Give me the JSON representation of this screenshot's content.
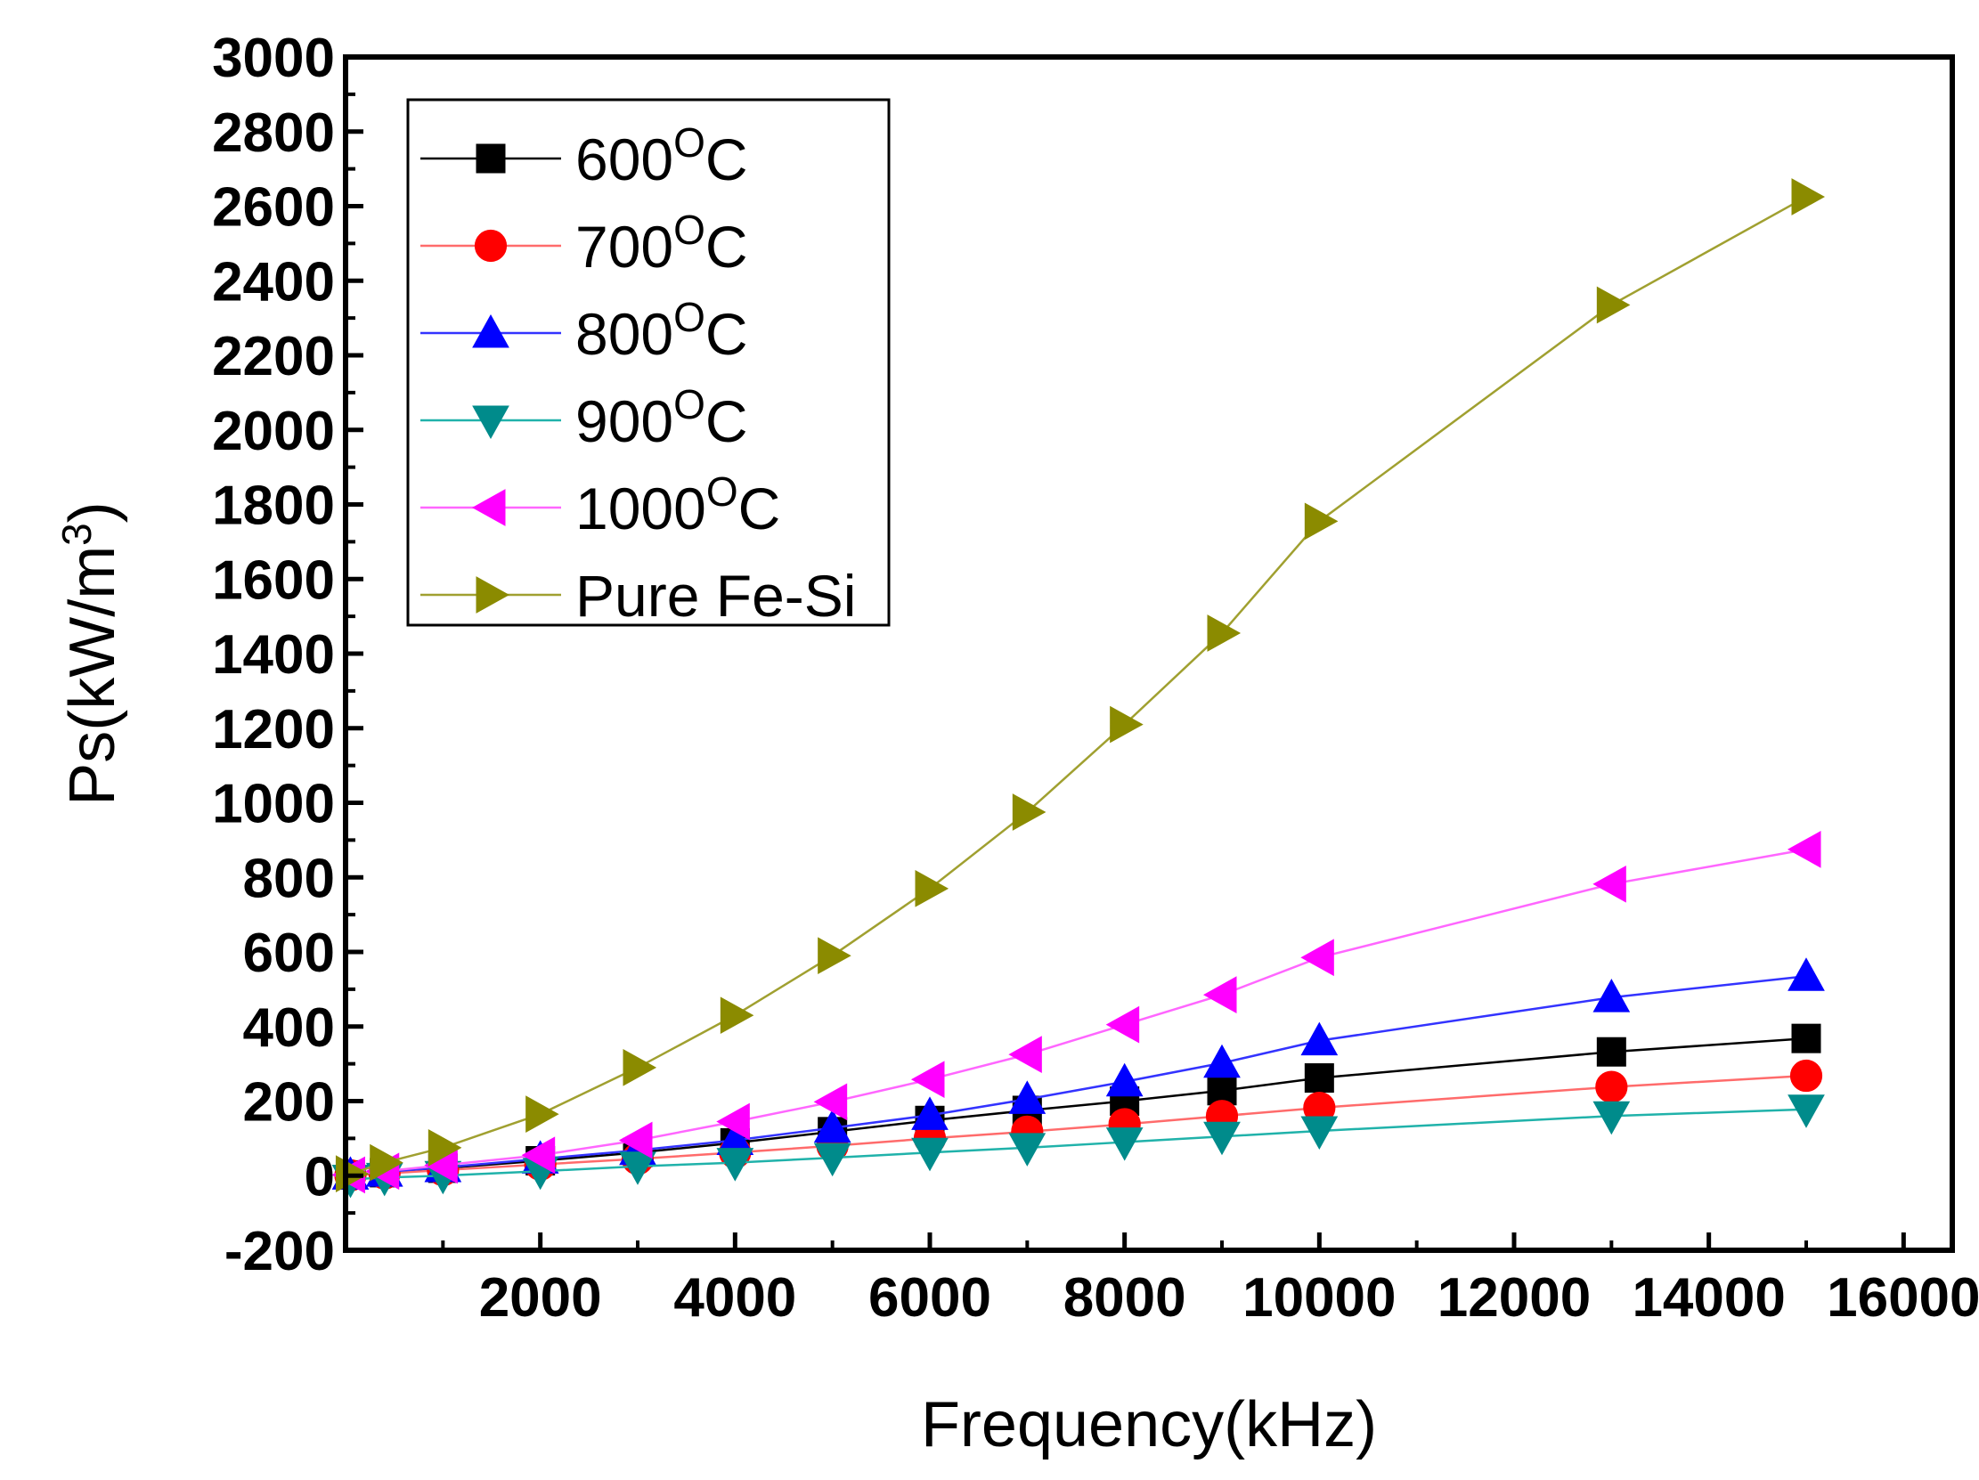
{
  "chart_data": {
    "type": "line",
    "title": "",
    "xlabel": "Frequency(kHz)",
    "ylabel": "Ps(kW/m³)",
    "ylabel_parts": {
      "main": "Ps(kW/m",
      "sup": "3",
      "tail": ")"
    },
    "xlim": [
      0,
      16500
    ],
    "ylim": [
      -200,
      3000
    ],
    "x_ticks": [
      2000,
      4000,
      6000,
      8000,
      10000,
      12000,
      14000,
      16000
    ],
    "y_ticks": [
      -200,
      0,
      200,
      400,
      600,
      800,
      1000,
      1200,
      1400,
      1600,
      1800,
      2000,
      2200,
      2400,
      2600,
      2800,
      3000
    ],
    "legend_position": "top-left",
    "x": [
      50,
      400,
      1000,
      2000,
      3000,
      4000,
      5000,
      6000,
      7000,
      8000,
      9000,
      10000,
      13000,
      15000
    ],
    "series": [
      {
        "name": "600°C",
        "label_main": "600",
        "label_sup": "O",
        "label_tail": "C",
        "color": "#000000",
        "line_color": "#000000",
        "marker": "square",
        "values": [
          2,
          8,
          20,
          40,
          62,
          88,
          118,
          148,
          175,
          200,
          228,
          262,
          332,
          368
        ]
      },
      {
        "name": "700°C",
        "label_main": "700",
        "label_sup": "O",
        "label_tail": "C",
        "color": "#ff0000",
        "line_color": "#ff6b6b",
        "marker": "circle",
        "values": [
          1,
          6,
          15,
          30,
          45,
          62,
          80,
          100,
          118,
          138,
          160,
          182,
          238,
          268
        ]
      },
      {
        "name": "800°C",
        "label_main": "800",
        "label_sup": "O",
        "label_tail": "C",
        "color": "#0000ff",
        "line_color": "#3333ff",
        "marker": "triangle-up",
        "values": [
          2,
          10,
          22,
          45,
          68,
          95,
          128,
          162,
          205,
          252,
          302,
          362,
          478,
          535
        ]
      },
      {
        "name": "900°C",
        "label_main": "900",
        "label_sup": "O",
        "label_tail": "C",
        "color": "#008b8b",
        "line_color": "#20b2aa",
        "marker": "triangle-down",
        "values": [
          -10,
          -5,
          0,
          12,
          25,
          35,
          48,
          62,
          75,
          90,
          105,
          120,
          160,
          178
        ]
      },
      {
        "name": "1000°C",
        "label_main": "1000",
        "label_sup": "O",
        "label_tail": "C",
        "color": "#ff00ff",
        "line_color": "#ff66ff",
        "marker": "triangle-left",
        "values": [
          2,
          12,
          28,
          55,
          95,
          145,
          198,
          258,
          325,
          405,
          485,
          585,
          782,
          875
        ]
      },
      {
        "name": "Pure Fe-Si",
        "label_main": "Pure Fe-Si",
        "label_sup": "",
        "label_tail": "",
        "color": "#8b8b00",
        "line_color": "#a0a030",
        "marker": "triangle-right",
        "values": [
          5,
          35,
          75,
          165,
          290,
          430,
          590,
          770,
          975,
          1210,
          1455,
          1755,
          2335,
          2625
        ]
      }
    ]
  }
}
